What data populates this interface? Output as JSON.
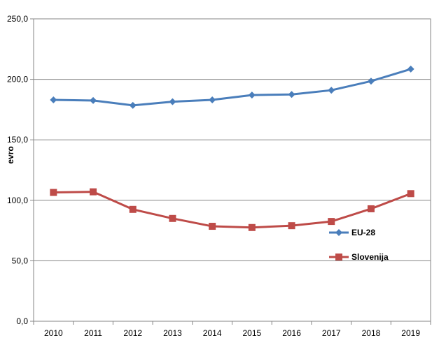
{
  "chart_data": {
    "type": "line",
    "x": [
      "2010",
      "2011",
      "2012",
      "2013",
      "2014",
      "2015",
      "2016",
      "2017",
      "2018",
      "2019"
    ],
    "series": [
      {
        "name": "EU-28",
        "color": "#4a7ebb",
        "marker": "diamond",
        "values": [
          183.0,
          182.5,
          178.5,
          181.5,
          183.0,
          187.0,
          187.5,
          191.0,
          198.5,
          208.5
        ]
      },
      {
        "name": "Slovenija",
        "color": "#be4b48",
        "marker": "square",
        "values": [
          106.5,
          107.0,
          92.5,
          85.0,
          78.5,
          77.5,
          79.0,
          82.5,
          93.0,
          105.5
        ]
      }
    ],
    "title": "",
    "xlabel": "",
    "ylabel": "evro",
    "ylim": [
      0,
      250
    ],
    "yticks": [
      "0,0",
      "50,0",
      "100,0",
      "150,0",
      "200,0",
      "250,0"
    ],
    "grid": true,
    "legend": "right"
  }
}
